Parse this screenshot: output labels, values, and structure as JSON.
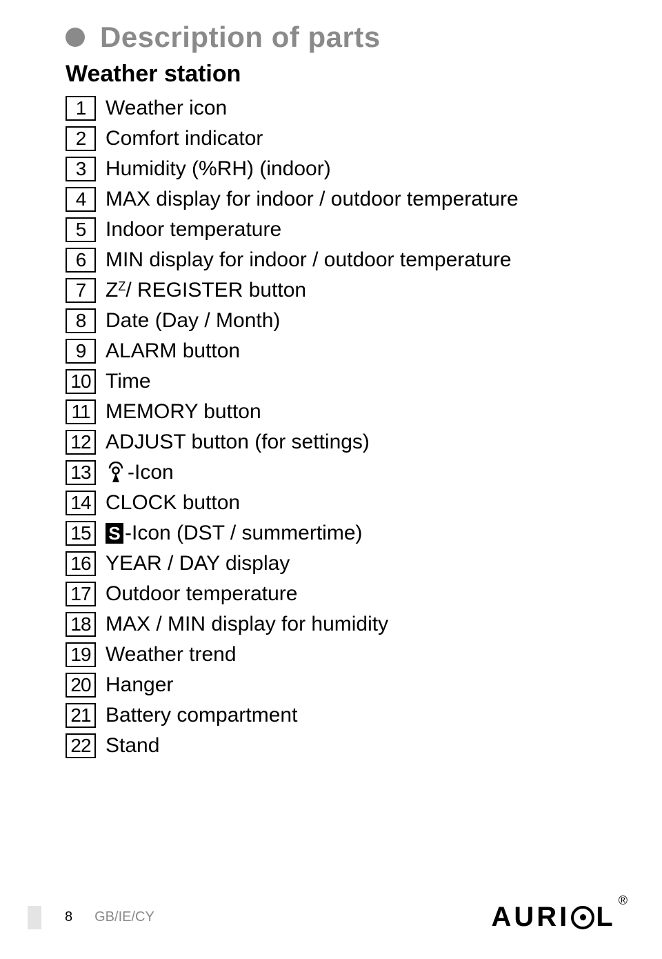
{
  "heading": "Description of parts",
  "subheading": "Weather station",
  "items": [
    {
      "num": "1",
      "label": "Weather icon",
      "type": "plain"
    },
    {
      "num": "2",
      "label": "Comfort indicator",
      "type": "plain"
    },
    {
      "num": "3",
      "label": "Humidity (%RH) (indoor)",
      "type": "plain"
    },
    {
      "num": "4",
      "label": "MAX display for indoor / outdoor temperature",
      "type": "plain"
    },
    {
      "num": "5",
      "label": "Indoor temperature",
      "type": "plain"
    },
    {
      "num": "6",
      "label": "MIN display for indoor / outdoor temperature",
      "type": "plain"
    },
    {
      "num": "7",
      "prefix": "Z",
      "sup": "Z",
      "suffix": " / REGISTER button",
      "type": "zz"
    },
    {
      "num": "8",
      "label": "Date (Day / Month)",
      "type": "plain"
    },
    {
      "num": "9",
      "label": "ALARM button",
      "type": "plain"
    },
    {
      "num": "10",
      "label": "Time",
      "type": "plain"
    },
    {
      "num": "11",
      "label": "MEMORY button",
      "type": "plain"
    },
    {
      "num": "12",
      "label": "ADJUST button (for settings)",
      "type": "plain"
    },
    {
      "num": "13",
      "suffix": "-Icon",
      "type": "signal"
    },
    {
      "num": "14",
      "label": "CLOCK button",
      "type": "plain"
    },
    {
      "num": "15",
      "badge": "S",
      "suffix": "-Icon (DST / summertime)",
      "type": "sbadge"
    },
    {
      "num": "16",
      "label": "YEAR / DAY display",
      "type": "plain"
    },
    {
      "num": "17",
      "label": "Outdoor temperature",
      "type": "plain"
    },
    {
      "num": "18",
      "label": "MAX / MIN display for humidity",
      "type": "plain"
    },
    {
      "num": "19",
      "label": "Weather trend",
      "type": "plain"
    },
    {
      "num": "20",
      "label": "Hanger",
      "type": "plain"
    },
    {
      "num": "21",
      "label": "Battery compartment",
      "type": "plain"
    },
    {
      "num": "22",
      "label": "Stand",
      "type": "plain"
    }
  ],
  "footer": {
    "page_number": "8",
    "locale": "GB/IE/CY",
    "brand_prefix": "AURI",
    "brand_suffix": "L",
    "reg": "®"
  },
  "colors": {
    "heading_gray": "#8a8a8a",
    "text_black": "#000000",
    "footer_block": "#e4e4e4",
    "background": "#ffffff"
  },
  "typography": {
    "heading_fontsize": 42,
    "subheading_fontsize": 34,
    "item_fontsize": 30,
    "numbox_fontsize": 28,
    "footer_fontsize": 20,
    "brand_fontsize": 40
  }
}
